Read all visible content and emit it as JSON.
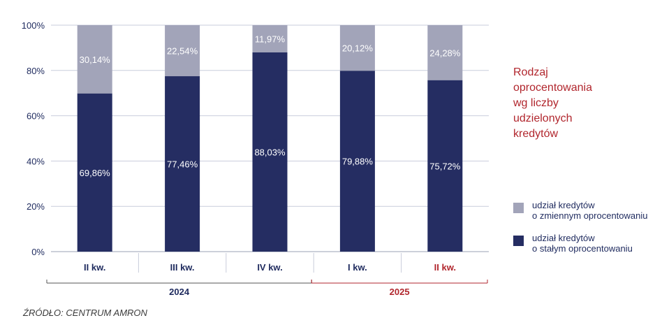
{
  "chart_data": {
    "type": "bar",
    "stacked": true,
    "percent": true,
    "categories": [
      "II kw.",
      "III kw.",
      "IV kw.",
      "I kw.",
      "II kw."
    ],
    "year_groups": [
      {
        "label": "2024",
        "span": [
          0,
          2
        ],
        "color": "#555555"
      },
      {
        "label": "2025",
        "span": [
          3,
          4
        ],
        "color": "#b1262d"
      }
    ],
    "series": [
      {
        "name": "udział kredytów o stałym oprocentowaniu",
        "values": [
          69.86,
          77.46,
          88.03,
          79.88,
          75.72
        ],
        "labels": [
          "69,86%",
          "77,46%",
          "88,03%",
          "79,88%",
          "75,72%"
        ],
        "color": "#252d62"
      },
      {
        "name": "udział kredytów o zmiennym oprocentowaniu",
        "values": [
          30.14,
          22.54,
          11.97,
          20.12,
          24.28
        ],
        "labels": [
          "30,14%",
          "22,54%",
          "11,97%",
          "20,12%",
          "24,28%"
        ],
        "color": "#a2a4b9"
      }
    ],
    "yticks": [
      "0%",
      "20%",
      "40%",
      "60%",
      "80%",
      "100%"
    ],
    "ylim": [
      0,
      100
    ],
    "grid": true,
    "category_label_colors": [
      "#1e2a5e",
      "#1e2a5e",
      "#1e2a5e",
      "#1e2a5e",
      "#b1262d"
    ]
  },
  "side_title": {
    "lines": [
      "Rodzaj",
      "oprocentowania",
      "wg liczby",
      "udzielonych",
      "kredytów"
    ]
  },
  "legend": {
    "variable": {
      "line1": "udział kredytów",
      "line2": "o zmiennym oprocentowaniu",
      "color": "#a2a4b9"
    },
    "fixed": {
      "line1": "udział kredytów",
      "line2": "o stałym oprocentowaniu",
      "color": "#252d62"
    }
  },
  "source": "ŹRÓDŁO: CENTRUM AMRON"
}
